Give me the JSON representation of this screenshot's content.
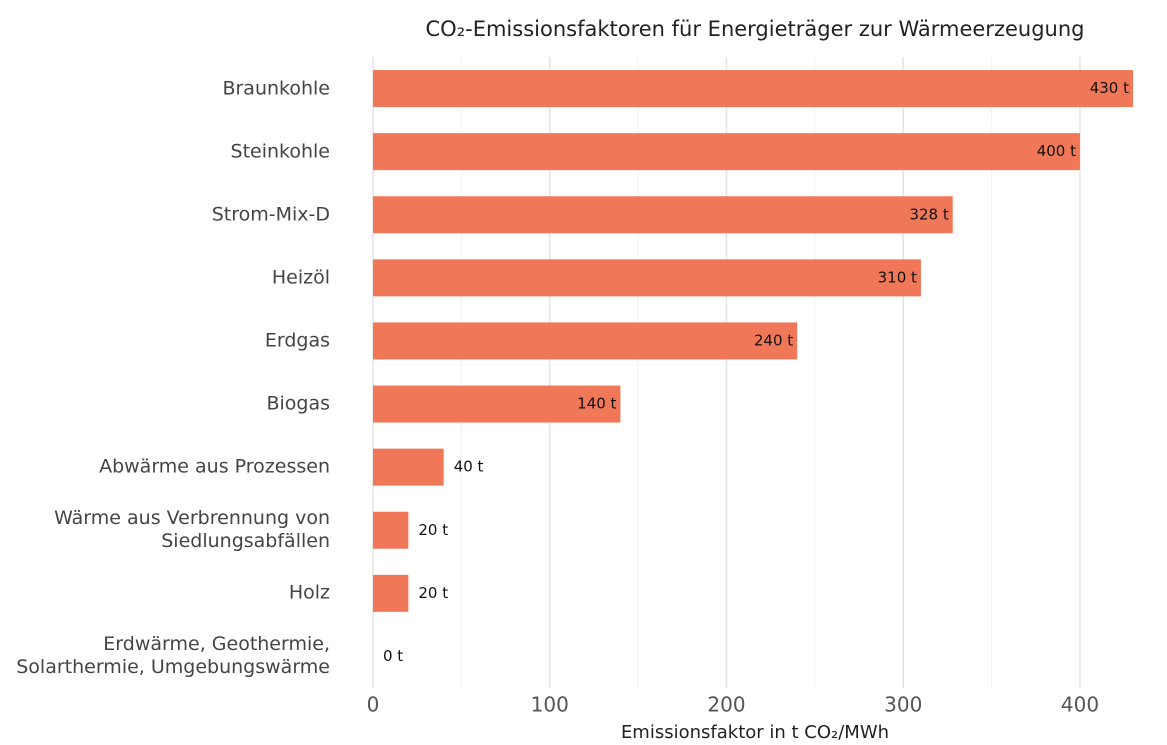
{
  "chart_data": {
    "type": "barh",
    "title": "CO₂-Emissionsfaktoren für Energieträger zur Wärmeerzeugung",
    "xlabel": "Emissionsfaktor in t CO₂/MWh",
    "categories": [
      "Braunkohle",
      "Steinkohle",
      "Strom-Mix-D",
      "Heizöl",
      "Erdgas",
      "Biogas",
      "Abwärme aus Prozessen",
      "Wärme aus Verbrennung von\nSiedlungsabfällen",
      "Holz",
      "Erdwärme, Geothermie,\nSolarthermie, Umgebungswärme"
    ],
    "values": [
      430,
      400,
      328,
      310,
      240,
      140,
      40,
      20,
      20,
      0
    ],
    "value_labels": [
      "430 t",
      "400 t",
      "328 t",
      "310 t",
      "240 t",
      "140 t",
      "40 t",
      "20 t",
      "20 t",
      "0 t"
    ],
    "color": "#f07858",
    "xlim": [
      0,
      430
    ],
    "xticks": [
      0,
      100,
      200,
      300,
      400
    ],
    "xminor": [
      50,
      150,
      250,
      350
    ],
    "grid": true
  }
}
